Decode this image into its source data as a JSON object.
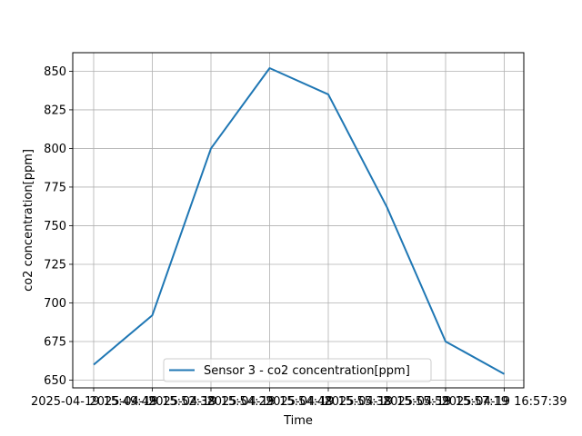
{
  "chart_data": {
    "type": "line",
    "xlabel": "Time",
    "ylabel": "co2 concentration[ppm]",
    "ylim": [
      645,
      862
    ],
    "yticks": [
      650,
      675,
      700,
      725,
      750,
      775,
      800,
      825,
      850
    ],
    "categories": [
      "2025-04-19 15:49:49",
      "2025-04-19 15:52:38",
      "2025-04-19 15:54:29",
      "2025-04-19 15:54:48",
      "2025-04-19 15:55:38",
      "2025-04-19 15:55:59",
      "2025-04-19 15:57:19",
      "2025-04-19 16:57:39"
    ],
    "series": [
      {
        "name": "Sensor 3 -  co2 concentration[ppm]",
        "color": "#1f77b4",
        "values": [
          660,
          692,
          800,
          852,
          835,
          762,
          675,
          654
        ]
      }
    ],
    "grid": true,
    "legend_position": "lower center"
  }
}
